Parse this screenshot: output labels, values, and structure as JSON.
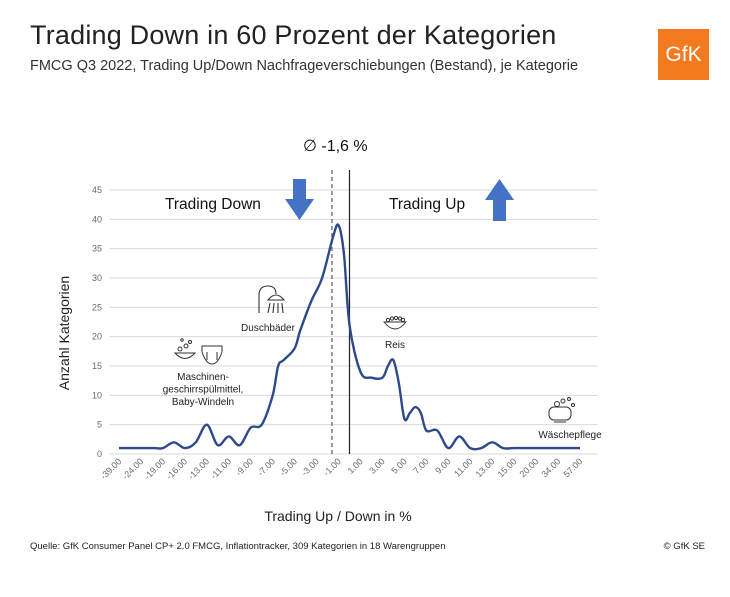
{
  "header": {
    "title": "Trading Down in 60 Prozent der Kategorien",
    "subtitle": "FMCG Q3 2022, Trading Up/Down Nachfrageverschiebungen (Bestand), je Kategorie",
    "logo_text": "GfK",
    "logo_color": "#f47a20"
  },
  "footer": {
    "source": "Quelle: GfK Consumer Panel CP+ 2.0 FMCG, Inflationtracker, 309 Kategorien in 18 Warengruppen",
    "copyright": "© GfK SE"
  },
  "chart_data": {
    "type": "line",
    "xlabel": "Trading Up / Down in %",
    "ylabel": "Anzahl Kategorien",
    "ylim": [
      0,
      45
    ],
    "yticks": [
      0,
      5,
      10,
      15,
      20,
      25,
      30,
      35,
      40,
      45
    ],
    "grid": true,
    "x_tick_labels": [
      "-39.00",
      "-24.00",
      "-19.00",
      "-16.00",
      "-13.00",
      "-11.00",
      "-9.00",
      "-7.00",
      "-5.00",
      "-3.00",
      "-1.00",
      "1.00",
      "3.00",
      "5.00",
      "7.00",
      "9.00",
      "11.00",
      "13.00",
      "15.00",
      "20.00",
      "34.00",
      "57.00"
    ],
    "series": [
      {
        "color": "#2e4a8c",
        "x": [
          -39,
          -30,
          -24,
          -21,
          -19,
          -17.5,
          -16,
          -14.5,
          -13,
          -12,
          -11,
          -10,
          -9,
          -8,
          -7,
          -6.5,
          -6,
          -5,
          -4.5,
          -3.5,
          -2.5,
          -1.5,
          -1,
          -0.5,
          0,
          1,
          2,
          3,
          3.5,
          4,
          4.5,
          5,
          5.5,
          6,
          6.5,
          7,
          8,
          9,
          10,
          11,
          12,
          13,
          14,
          15,
          20,
          34,
          57
        ],
        "y": [
          1,
          1,
          1,
          1,
          1,
          2,
          1,
          2,
          5,
          1.5,
          3,
          1.5,
          4.5,
          5,
          10,
          15,
          16,
          18,
          21,
          26,
          30,
          37,
          39,
          34,
          22,
          14,
          13,
          13,
          15,
          16,
          12,
          6,
          7,
          8,
          7,
          4,
          4,
          1,
          3,
          1,
          1,
          2,
          1,
          1,
          1,
          1,
          1
        ]
      }
    ],
    "reference_lines": [
      {
        "x": -1.6,
        "style": "dashed",
        "label": "∅ -1,6 %"
      },
      {
        "x": 0,
        "style": "solid"
      }
    ],
    "regions": [
      {
        "label": "Trading Down",
        "arrow": "down",
        "color": "#4472c4"
      },
      {
        "label": "Trading Up",
        "arrow": "up",
        "color": "#4472c4"
      }
    ],
    "annotations": [
      {
        "text": "Maschinen-\ngeschirrspülmittel,\nBaby-Windeln",
        "icon": "dishwasher-detergent-and-diaper-icon"
      },
      {
        "text": "Duschbäder",
        "icon": "shower-icon"
      },
      {
        "text": "Reis",
        "icon": "rice-bowl-icon"
      },
      {
        "text": "Wäschepflege",
        "icon": "laundry-icon"
      }
    ]
  }
}
